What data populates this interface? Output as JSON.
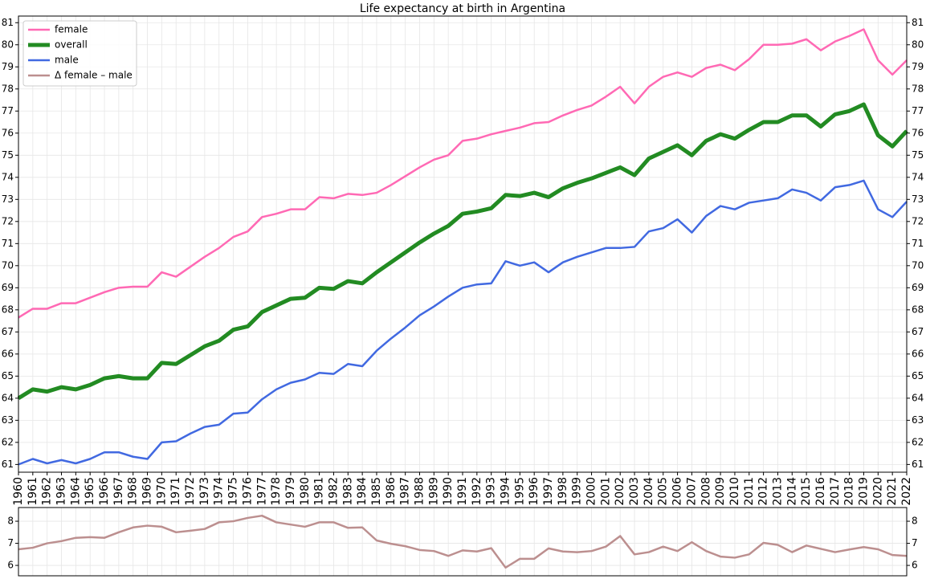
{
  "chart_data": [
    {
      "type": "line",
      "title": "Life expectancy at birth in Argentina",
      "x": [
        1960,
        1961,
        1962,
        1963,
        1964,
        1965,
        1966,
        1967,
        1968,
        1969,
        1970,
        1971,
        1972,
        1973,
        1974,
        1975,
        1976,
        1977,
        1978,
        1979,
        1980,
        1981,
        1982,
        1983,
        1984,
        1985,
        1986,
        1987,
        1988,
        1989,
        1990,
        1991,
        1992,
        1993,
        1994,
        1995,
        1996,
        1997,
        1998,
        1999,
        2000,
        2001,
        2002,
        2003,
        2004,
        2005,
        2006,
        2007,
        2008,
        2009,
        2010,
        2011,
        2012,
        2013,
        2014,
        2015,
        2016,
        2017,
        2018,
        2019,
        2020,
        2021,
        2022
      ],
      "xlim": [
        1960,
        2022
      ],
      "ylim": [
        60.65,
        81.3
      ],
      "yticks": [
        61,
        62,
        63,
        64,
        65,
        66,
        67,
        68,
        69,
        70,
        71,
        72,
        73,
        74,
        75,
        76,
        77,
        78,
        79,
        80,
        81
      ],
      "grid": true,
      "legend": "upper left",
      "series": [
        {
          "name": "female",
          "color": "#ff69b4",
          "values": [
            67.65,
            68.05,
            68.05,
            68.3,
            68.3,
            68.55,
            68.8,
            69.0,
            69.05,
            69.05,
            69.7,
            69.5,
            69.95,
            70.4,
            70.8,
            71.3,
            71.55,
            72.2,
            72.35,
            72.55,
            72.55,
            73.1,
            73.05,
            73.25,
            73.2,
            73.3,
            73.65,
            74.05,
            74.45,
            74.8,
            75.0,
            75.65,
            75.75,
            75.95,
            76.1,
            76.25,
            76.45,
            76.5,
            76.8,
            77.05,
            77.25,
            77.65,
            78.1,
            77.35,
            78.1,
            78.55,
            78.75,
            78.55,
            78.95,
            79.1,
            78.85,
            79.35,
            80.0,
            80.0,
            80.05,
            80.25,
            79.75,
            80.15,
            80.4,
            80.7,
            79.3,
            78.65,
            79.3
          ]
        },
        {
          "name": "overall",
          "color": "#228b22",
          "values": [
            64.0,
            64.4,
            64.3,
            64.5,
            64.4,
            64.6,
            64.9,
            65.0,
            64.9,
            64.9,
            65.6,
            65.55,
            65.95,
            66.35,
            66.6,
            67.1,
            67.25,
            67.9,
            68.2,
            68.5,
            68.55,
            69.0,
            68.95,
            69.3,
            69.2,
            69.7,
            70.15,
            70.6,
            71.05,
            71.45,
            71.8,
            72.35,
            72.45,
            72.6,
            73.2,
            73.15,
            73.3,
            73.1,
            73.5,
            73.75,
            73.95,
            74.2,
            74.45,
            74.1,
            74.85,
            75.15,
            75.45,
            75.0,
            75.65,
            75.95,
            75.75,
            76.15,
            76.5,
            76.5,
            76.8,
            76.8,
            76.3,
            76.85,
            77.0,
            77.3,
            75.9,
            75.4,
            76.1
          ]
        },
        {
          "name": "male",
          "color": "#4169e1",
          "values": [
            61.0,
            61.25,
            61.05,
            61.2,
            61.05,
            61.25,
            61.55,
            61.55,
            61.35,
            61.25,
            62.0,
            62.05,
            62.4,
            62.7,
            62.8,
            63.3,
            63.35,
            63.95,
            64.4,
            64.7,
            64.85,
            65.15,
            65.1,
            65.55,
            65.45,
            66.15,
            66.7,
            67.2,
            67.75,
            68.15,
            68.6,
            69.0,
            69.15,
            69.2,
            70.2,
            70.0,
            70.15,
            69.7,
            70.15,
            70.4,
            70.6,
            70.8,
            70.8,
            70.85,
            71.55,
            71.7,
            72.1,
            71.5,
            72.25,
            72.7,
            72.55,
            72.85,
            72.95,
            73.05,
            73.45,
            73.3,
            72.95,
            73.55,
            73.65,
            73.85,
            72.55,
            72.2,
            72.9
          ]
        }
      ]
    },
    {
      "type": "line",
      "x": [
        1960,
        1961,
        1962,
        1963,
        1964,
        1965,
        1966,
        1967,
        1968,
        1969,
        1970,
        1971,
        1972,
        1973,
        1974,
        1975,
        1976,
        1977,
        1978,
        1979,
        1980,
        1981,
        1982,
        1983,
        1984,
        1985,
        1986,
        1987,
        1988,
        1989,
        1990,
        1991,
        1992,
        1993,
        1994,
        1995,
        1996,
        1997,
        1998,
        1999,
        2000,
        2001,
        2002,
        2003,
        2004,
        2005,
        2006,
        2007,
        2008,
        2009,
        2010,
        2011,
        2012,
        2013,
        2014,
        2015,
        2016,
        2017,
        2018,
        2019,
        2020,
        2021,
        2022
      ],
      "xlim": [
        1960,
        2022
      ],
      "ylim": [
        5.53,
        8.62
      ],
      "yticks": [
        6,
        7,
        8
      ],
      "grid": true,
      "series": [
        {
          "name": "Δ female – male",
          "color": "#bc8f8f",
          "values": [
            6.73,
            6.8,
            7.0,
            7.1,
            7.25,
            7.28,
            7.25,
            7.5,
            7.72,
            7.8,
            7.75,
            7.5,
            7.57,
            7.65,
            7.95,
            8.0,
            8.15,
            8.25,
            7.95,
            7.85,
            7.75,
            7.95,
            7.95,
            7.7,
            7.72,
            7.13,
            6.98,
            6.87,
            6.7,
            6.65,
            6.43,
            6.68,
            6.63,
            6.78,
            5.9,
            6.3,
            6.3,
            6.77,
            6.63,
            6.6,
            6.65,
            6.85,
            7.33,
            6.5,
            6.6,
            6.85,
            6.65,
            7.05,
            6.65,
            6.4,
            6.35,
            6.5,
            7.02,
            6.93,
            6.6,
            6.9,
            6.75,
            6.6,
            6.72,
            6.83,
            6.73,
            6.47,
            6.43
          ]
        }
      ]
    }
  ]
}
